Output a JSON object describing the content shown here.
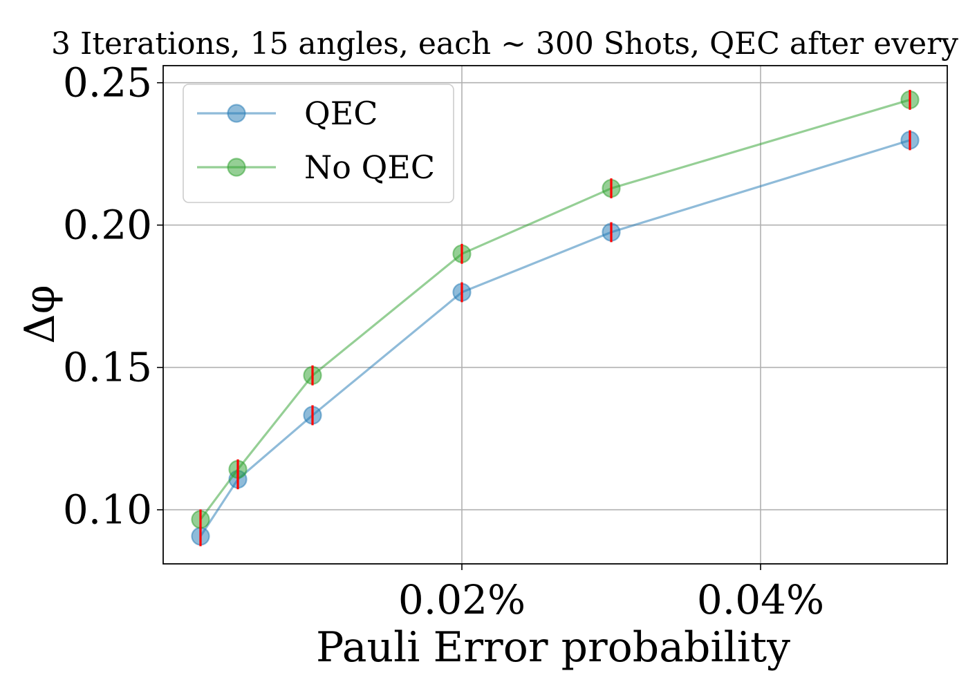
{
  "chart_data": {
    "type": "line",
    "title": "3 Iterations, 15 angles, each ∼ 300 Shots, QEC after every",
    "xlabel": "Pauli Error probability",
    "ylabel": "Δφ",
    "xlim": [
      0.0,
      0.0525
    ],
    "ylim": [
      0.081,
      0.256
    ],
    "x_ticks": [
      0.02,
      0.04
    ],
    "x_tick_labels": [
      "0.02%",
      "0.04%"
    ],
    "y_ticks": [
      0.1,
      0.15,
      0.2,
      0.25
    ],
    "y_tick_labels": [
      "0.10",
      "0.15",
      "0.20",
      "0.25"
    ],
    "grid": true,
    "legend_position": "top-left",
    "x": [
      0.0025,
      0.005,
      0.01,
      0.02,
      0.03,
      0.05
    ],
    "series": [
      {
        "name": "QEC",
        "color": "#1f77b4",
        "values": [
          0.0907,
          0.1107,
          0.1332,
          0.1764,
          0.1975,
          0.2298
        ]
      },
      {
        "name": "No QEC",
        "color": "#2ca02c",
        "values": [
          0.0966,
          0.1142,
          0.1472,
          0.1899,
          0.2129,
          0.244
        ]
      }
    ],
    "error_bar_color": "#ff0000",
    "error_bar_halfwidth": 0.0035
  }
}
